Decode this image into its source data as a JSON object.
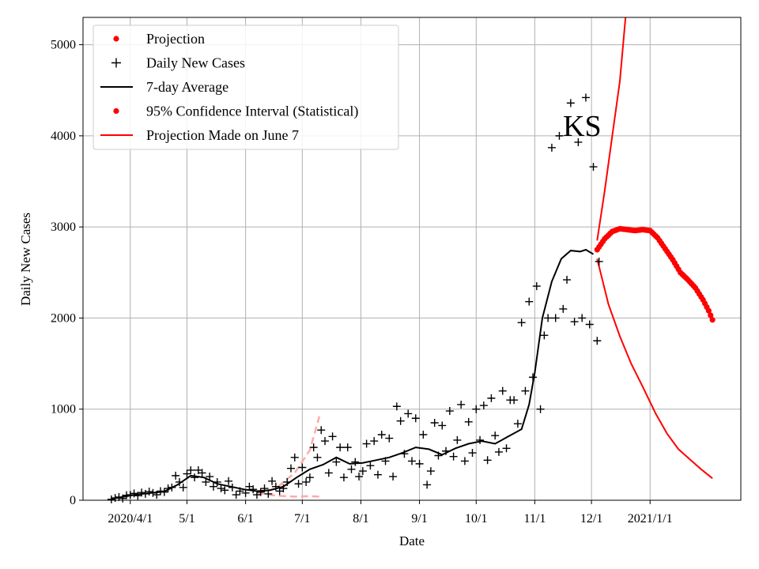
{
  "chart_data": {
    "type": "line",
    "title": "",
    "xlabel": "Date",
    "ylabel": "Daily New Cases",
    "annotation": "KS",
    "grid": true,
    "legend_position": "top-left",
    "xlim": [
      "2020-03-07",
      "2021-02-18"
    ],
    "ylim": [
      0,
      5300
    ],
    "x_ticks": [
      {
        "date": "2020-04-01",
        "label": "2020/4/1"
      },
      {
        "date": "2020-05-01",
        "label": "5/1"
      },
      {
        "date": "2020-06-01",
        "label": "6/1"
      },
      {
        "date": "2020-07-01",
        "label": "7/1"
      },
      {
        "date": "2020-08-01",
        "label": "8/1"
      },
      {
        "date": "2020-09-01",
        "label": "9/1"
      },
      {
        "date": "2020-10-01",
        "label": "10/1"
      },
      {
        "date": "2020-11-01",
        "label": "11/1"
      },
      {
        "date": "2020-12-01",
        "label": "12/1"
      },
      {
        "date": "2021-01-01",
        "label": "2021/1/1"
      }
    ],
    "y_ticks": [
      0,
      1000,
      2000,
      3000,
      4000,
      5000
    ],
    "legend": [
      {
        "label": "Projection",
        "marker": "dot",
        "color": "#ff0000"
      },
      {
        "label": "Daily New Cases",
        "marker": "plus",
        "color": "#000000"
      },
      {
        "label": "7-day Average",
        "marker": "line",
        "color": "#000000"
      },
      {
        "label": "95% Confidence Interval (Statistical)",
        "marker": "dot",
        "color": "#ff0000"
      },
      {
        "label": "Projection Made on June 7",
        "marker": "line",
        "color": "#ff0000"
      }
    ],
    "series": [
      {
        "name": "Daily New Cases",
        "style": "plus",
        "color": "#000000",
        "points": [
          [
            "2020-03-22",
            10
          ],
          [
            "2020-03-24",
            25
          ],
          [
            "2020-03-26",
            35
          ],
          [
            "2020-03-28",
            20
          ],
          [
            "2020-03-30",
            55
          ],
          [
            "2020-04-01",
            60
          ],
          [
            "2020-04-03",
            75
          ],
          [
            "2020-04-05",
            50
          ],
          [
            "2020-04-07",
            85
          ],
          [
            "2020-04-09",
            70
          ],
          [
            "2020-04-11",
            95
          ],
          [
            "2020-04-13",
            80
          ],
          [
            "2020-04-15",
            60
          ],
          [
            "2020-04-17",
            100
          ],
          [
            "2020-04-19",
            90
          ],
          [
            "2020-04-21",
            130
          ],
          [
            "2020-04-23",
            140
          ],
          [
            "2020-04-25",
            270
          ],
          [
            "2020-04-27",
            200
          ],
          [
            "2020-04-29",
            140
          ],
          [
            "2020-05-01",
            290
          ],
          [
            "2020-05-03",
            330
          ],
          [
            "2020-05-05",
            250
          ],
          [
            "2020-05-07",
            330
          ],
          [
            "2020-05-09",
            300
          ],
          [
            "2020-05-11",
            200
          ],
          [
            "2020-05-13",
            260
          ],
          [
            "2020-05-15",
            150
          ],
          [
            "2020-05-17",
            200
          ],
          [
            "2020-05-19",
            130
          ],
          [
            "2020-05-21",
            110
          ],
          [
            "2020-05-23",
            210
          ],
          [
            "2020-05-25",
            140
          ],
          [
            "2020-05-27",
            60
          ],
          [
            "2020-05-29",
            100
          ],
          [
            "2020-06-01",
            80
          ],
          [
            "2020-06-03",
            150
          ],
          [
            "2020-06-05",
            120
          ],
          [
            "2020-06-07",
            60
          ],
          [
            "2020-06-09",
            90
          ],
          [
            "2020-06-11",
            130
          ],
          [
            "2020-06-13",
            70
          ],
          [
            "2020-06-15",
            210
          ],
          [
            "2020-06-17",
            150
          ],
          [
            "2020-06-19",
            100
          ],
          [
            "2020-06-21",
            130
          ],
          [
            "2020-06-23",
            200
          ],
          [
            "2020-06-25",
            350
          ],
          [
            "2020-06-27",
            470
          ],
          [
            "2020-06-29",
            180
          ],
          [
            "2020-07-01",
            360
          ],
          [
            "2020-07-03",
            200
          ],
          [
            "2020-07-05",
            250
          ],
          [
            "2020-07-07",
            580
          ],
          [
            "2020-07-09",
            470
          ],
          [
            "2020-07-11",
            770
          ],
          [
            "2020-07-13",
            650
          ],
          [
            "2020-07-15",
            300
          ],
          [
            "2020-07-17",
            700
          ],
          [
            "2020-07-19",
            420
          ],
          [
            "2020-07-21",
            580
          ],
          [
            "2020-07-23",
            250
          ],
          [
            "2020-07-25",
            580
          ],
          [
            "2020-07-27",
            340
          ],
          [
            "2020-07-29",
            420
          ],
          [
            "2020-07-31",
            260
          ],
          [
            "2020-08-02",
            320
          ],
          [
            "2020-08-04",
            620
          ],
          [
            "2020-08-06",
            380
          ],
          [
            "2020-08-08",
            650
          ],
          [
            "2020-08-10",
            280
          ],
          [
            "2020-08-12",
            720
          ],
          [
            "2020-08-14",
            430
          ],
          [
            "2020-08-16",
            680
          ],
          [
            "2020-08-18",
            260
          ],
          [
            "2020-08-20",
            1030
          ],
          [
            "2020-08-22",
            870
          ],
          [
            "2020-08-24",
            510
          ],
          [
            "2020-08-26",
            950
          ],
          [
            "2020-08-28",
            430
          ],
          [
            "2020-08-30",
            900
          ],
          [
            "2020-09-01",
            400
          ],
          [
            "2020-09-03",
            720
          ],
          [
            "2020-09-05",
            170
          ],
          [
            "2020-09-07",
            320
          ],
          [
            "2020-09-09",
            850
          ],
          [
            "2020-09-11",
            490
          ],
          [
            "2020-09-13",
            820
          ],
          [
            "2020-09-15",
            540
          ],
          [
            "2020-09-17",
            980
          ],
          [
            "2020-09-19",
            480
          ],
          [
            "2020-09-21",
            660
          ],
          [
            "2020-09-23",
            1050
          ],
          [
            "2020-09-25",
            430
          ],
          [
            "2020-09-27",
            860
          ],
          [
            "2020-09-29",
            520
          ],
          [
            "2020-10-01",
            1000
          ],
          [
            "2020-10-03",
            660
          ],
          [
            "2020-10-05",
            1040
          ],
          [
            "2020-10-07",
            440
          ],
          [
            "2020-10-09",
            1120
          ],
          [
            "2020-10-11",
            710
          ],
          [
            "2020-10-13",
            530
          ],
          [
            "2020-10-15",
            1200
          ],
          [
            "2020-10-17",
            570
          ],
          [
            "2020-10-19",
            1100
          ],
          [
            "2020-10-21",
            1100
          ],
          [
            "2020-10-23",
            840
          ],
          [
            "2020-10-25",
            1950
          ],
          [
            "2020-10-27",
            1200
          ],
          [
            "2020-10-29",
            2180
          ],
          [
            "2020-10-31",
            1350
          ],
          [
            "2020-11-02",
            2350
          ],
          [
            "2020-11-04",
            1000
          ],
          [
            "2020-11-06",
            1810
          ],
          [
            "2020-11-08",
            2000
          ],
          [
            "2020-11-10",
            3870
          ],
          [
            "2020-11-12",
            2000
          ],
          [
            "2020-11-14",
            4000
          ],
          [
            "2020-11-16",
            2100
          ],
          [
            "2020-11-18",
            2420
          ],
          [
            "2020-11-20",
            4360
          ],
          [
            "2020-11-22",
            1960
          ],
          [
            "2020-11-24",
            3930
          ],
          [
            "2020-11-26",
            2000
          ],
          [
            "2020-11-28",
            4420
          ],
          [
            "2020-11-30",
            1930
          ],
          [
            "2020-12-02",
            3660
          ],
          [
            "2020-12-04",
            1750
          ],
          [
            "2020-12-05",
            2620
          ]
        ]
      },
      {
        "name": "7-day Average",
        "style": "line",
        "color": "#000000",
        "points": [
          [
            "2020-03-22",
            15
          ],
          [
            "2020-03-29",
            40
          ],
          [
            "2020-04-05",
            65
          ],
          [
            "2020-04-12",
            80
          ],
          [
            "2020-04-19",
            95
          ],
          [
            "2020-04-26",
            170
          ],
          [
            "2020-05-03",
            270
          ],
          [
            "2020-05-10",
            250
          ],
          [
            "2020-05-17",
            180
          ],
          [
            "2020-05-24",
            150
          ],
          [
            "2020-05-31",
            120
          ],
          [
            "2020-06-07",
            100
          ],
          [
            "2020-06-14",
            110
          ],
          [
            "2020-06-21",
            150
          ],
          [
            "2020-06-28",
            250
          ],
          [
            "2020-07-05",
            340
          ],
          [
            "2020-07-12",
            390
          ],
          [
            "2020-07-19",
            470
          ],
          [
            "2020-07-26",
            400
          ],
          [
            "2020-08-02",
            410
          ],
          [
            "2020-08-09",
            440
          ],
          [
            "2020-08-16",
            470
          ],
          [
            "2020-08-23",
            520
          ],
          [
            "2020-08-30",
            580
          ],
          [
            "2020-09-06",
            560
          ],
          [
            "2020-09-13",
            500
          ],
          [
            "2020-09-20",
            570
          ],
          [
            "2020-09-27",
            620
          ],
          [
            "2020-10-04",
            650
          ],
          [
            "2020-10-11",
            620
          ],
          [
            "2020-10-18",
            700
          ],
          [
            "2020-10-25",
            780
          ],
          [
            "2020-10-29",
            1050
          ],
          [
            "2020-11-01",
            1400
          ],
          [
            "2020-11-05",
            2000
          ],
          [
            "2020-11-10",
            2400
          ],
          [
            "2020-11-15",
            2650
          ],
          [
            "2020-11-20",
            2740
          ],
          [
            "2020-11-25",
            2730
          ],
          [
            "2020-11-28",
            2750
          ],
          [
            "2020-12-02",
            2700
          ]
        ]
      },
      {
        "name": "Projection",
        "style": "dot",
        "color": "#ff0000",
        "points": [
          [
            "2020-12-04",
            2750
          ],
          [
            "2020-12-08",
            2870
          ],
          [
            "2020-12-12",
            2950
          ],
          [
            "2020-12-16",
            2980
          ],
          [
            "2020-12-20",
            2970
          ],
          [
            "2020-12-24",
            2960
          ],
          [
            "2020-12-28",
            2970
          ],
          [
            "2021-01-01",
            2960
          ],
          [
            "2021-01-05",
            2880
          ],
          [
            "2021-01-09",
            2760
          ],
          [
            "2021-01-13",
            2640
          ],
          [
            "2021-01-17",
            2500
          ],
          [
            "2021-01-21",
            2420
          ],
          [
            "2021-01-25",
            2330
          ],
          [
            "2021-01-29",
            2200
          ],
          [
            "2021-02-01",
            2080
          ],
          [
            "2021-02-03",
            1980
          ]
        ]
      },
      {
        "name": "95% Confidence Interval (Statistical)",
        "style": "line",
        "color": "#ff0000",
        "points_upper": [
          [
            "2020-12-04",
            2850
          ],
          [
            "2020-12-08",
            3400
          ],
          [
            "2020-12-12",
            4000
          ],
          [
            "2020-12-16",
            4600
          ],
          [
            "2020-12-19",
            5300
          ]
        ],
        "points_lower": [
          [
            "2020-12-04",
            2650
          ],
          [
            "2020-12-10",
            2150
          ],
          [
            "2020-12-16",
            1800
          ],
          [
            "2020-12-22",
            1500
          ],
          [
            "2020-12-28",
            1250
          ],
          [
            "2021-01-04",
            950
          ],
          [
            "2021-01-10",
            730
          ],
          [
            "2021-01-16",
            560
          ],
          [
            "2021-01-22",
            450
          ],
          [
            "2021-01-28",
            340
          ],
          [
            "2021-02-03",
            240
          ]
        ]
      },
      {
        "name": "Projection Made on June 7",
        "style": "dashed",
        "color": "#ffaaaa",
        "points_upper": [
          [
            "2020-06-07",
            80
          ],
          [
            "2020-06-17",
            130
          ],
          [
            "2020-06-27",
            300
          ],
          [
            "2020-07-05",
            550
          ],
          [
            "2020-07-10",
            920
          ]
        ],
        "points_lower": [
          [
            "2020-06-07",
            80
          ],
          [
            "2020-06-17",
            50
          ],
          [
            "2020-06-27",
            40
          ],
          [
            "2020-07-05",
            45
          ],
          [
            "2020-07-10",
            40
          ]
        ]
      }
    ]
  }
}
